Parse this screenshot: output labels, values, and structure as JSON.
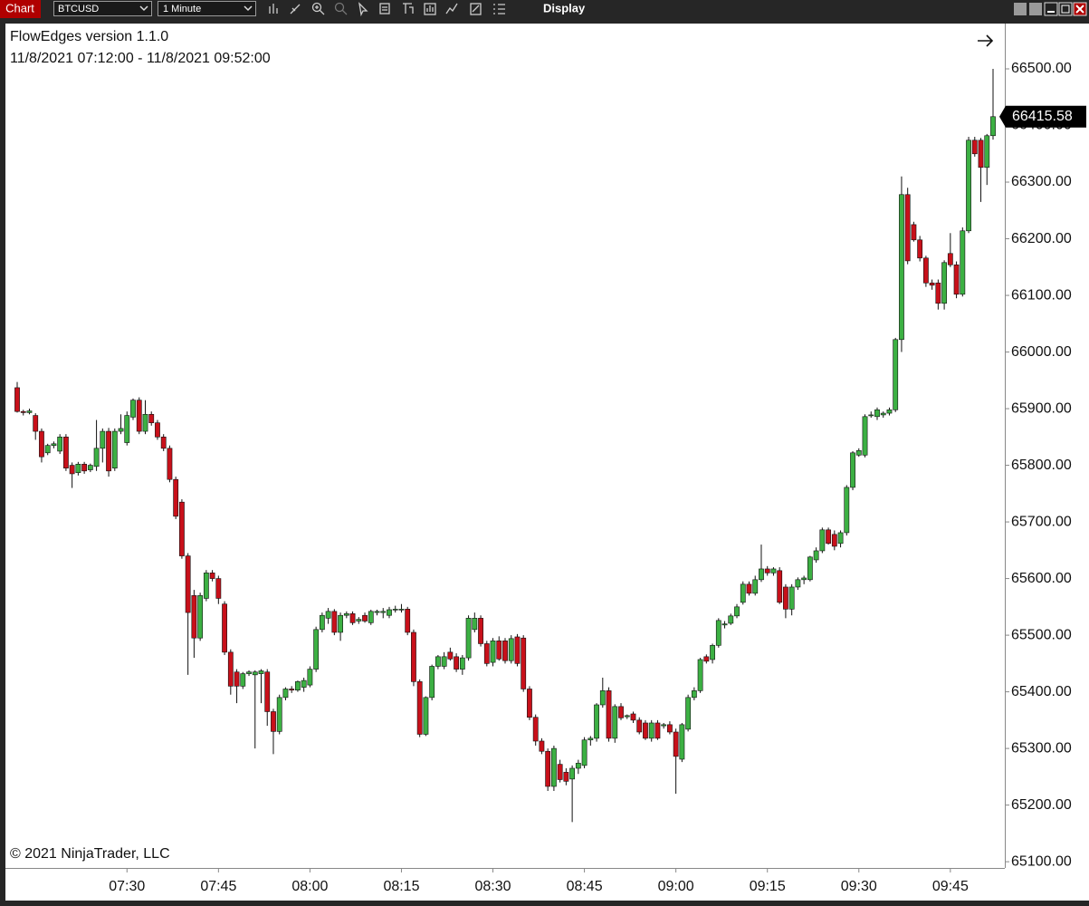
{
  "toolbar": {
    "tab": "Chart",
    "instrument": "BTCUSD",
    "interval": "1 Minute",
    "menu": "Display"
  },
  "chart_data": {
    "type": "candlestick",
    "title": "FlowEdges version 1.1.0",
    "subtitle": "11/8/2021 07:12:00 - 11/8/2021 09:52:00",
    "annotation": "© 2021 NinjaTrader, LLC",
    "up_color": "#3cb043",
    "down_color": "#c8101a",
    "categories": [
      null,
      null,
      null,
      null,
      null,
      null,
      null,
      null,
      null,
      null,
      null,
      null,
      null,
      null,
      null,
      null,
      null,
      null,
      "07:30",
      null,
      null,
      null,
      null,
      null,
      null,
      null,
      null,
      null,
      null,
      null,
      null,
      null,
      null,
      "07:45",
      null,
      null,
      null,
      null,
      null,
      null,
      null,
      null,
      null,
      null,
      null,
      null,
      null,
      null,
      "08:00",
      null,
      null,
      null,
      null,
      null,
      null,
      null,
      null,
      null,
      null,
      null,
      null,
      null,
      null,
      "08:15",
      null,
      null,
      null,
      null,
      null,
      null,
      null,
      null,
      null,
      null,
      null,
      null,
      null,
      null,
      "08:30",
      null,
      null,
      null,
      null,
      null,
      null,
      null,
      null,
      null,
      null,
      null,
      null,
      null,
      null,
      "08:45",
      null,
      null,
      null,
      null,
      null,
      null,
      null,
      null,
      null,
      null,
      null,
      null,
      null,
      null,
      "09:00",
      null,
      null,
      null,
      null,
      null,
      null,
      null,
      null,
      null,
      null,
      null,
      null,
      null,
      null,
      "09:15",
      null,
      null,
      null,
      null,
      null,
      null,
      null,
      null,
      null,
      null,
      null,
      null,
      null,
      null,
      "09:30",
      null,
      null,
      null,
      null,
      null,
      null,
      null,
      null,
      null,
      null,
      null,
      null,
      null,
      null,
      "09:45",
      null,
      null,
      null,
      null,
      null,
      null,
      null
    ],
    "open": [
      65937,
      65895,
      65893,
      65888,
      65860,
      65822,
      65835,
      65825,
      65850,
      65800,
      65787,
      65802,
      65792,
      65798,
      65830,
      65860,
      65795,
      65860,
      65840,
      65885,
      65915,
      65860,
      65890,
      65875,
      65850,
      65830,
      65775,
      65735,
      65640,
      65570,
      65495,
      65565,
      65610,
      65600,
      65555,
      65470,
      65435,
      65410,
      65432,
      65430,
      65432,
      65435,
      65365,
      65330,
      65390,
      65405,
      65403,
      65408,
      65412,
      65440,
      65510,
      65530,
      65542,
      65505,
      65535,
      65538,
      65525,
      65535,
      65522,
      65540,
      65540,
      65535,
      65545,
      65546,
      65546,
      65505,
      65418,
      65325,
      65390,
      65445,
      65445,
      65470,
      65462,
      65440,
      65460,
      65510,
      65530,
      65485,
      65452,
      65490,
      65490,
      65455,
      65497,
      65495,
      65405,
      65355,
      65313,
      65295,
      65233,
      65272,
      65258,
      65246,
      65265,
      65270,
      65315,
      65318,
      65377,
      65402,
      65318,
      65374,
      65356,
      65361,
      65350,
      65345,
      65318,
      65345,
      65340,
      65342,
      65329,
      65281,
      65334,
      65390,
      65402,
      65462,
      65457,
      65482,
      65518,
      65521,
      65534,
      65558,
      65590,
      65574,
      65598,
      65617,
      65610,
      65614,
      65585,
      65546,
      65585,
      65598,
      65598,
      65633,
      65649,
      65686,
      65678,
      65662,
      65681,
      65761,
      65818,
      65818,
      65888,
      65886,
      65889,
      65892,
      65898,
      66022,
      66278,
      66225,
      66198,
      66166,
      66122,
      66122,
      66086,
      66174,
      66154,
      66102,
      66214,
      66374,
      66374,
      66326,
      66382
    ],
    "high": [
      65947,
      65898,
      65900,
      65892,
      65865,
      65838,
      65842,
      65855,
      65855,
      65805,
      65806,
      65806,
      65803,
      65880,
      65865,
      65866,
      65865,
      65890,
      65895,
      65918,
      65920,
      65915,
      65895,
      65880,
      65855,
      65835,
      65780,
      65740,
      65645,
      65580,
      65575,
      65615,
      65615,
      65605,
      65560,
      65475,
      65440,
      65435,
      65438,
      65438,
      65440,
      65440,
      65370,
      65395,
      65408,
      65410,
      65420,
      65425,
      65445,
      65515,
      65540,
      65548,
      65546,
      65540,
      65542,
      65542,
      65532,
      65540,
      65545,
      65545,
      65548,
      65550,
      65552,
      65555,
      65550,
      65510,
      65422,
      65392,
      65448,
      65465,
      65470,
      65478,
      65468,
      65465,
      65535,
      65540,
      65535,
      65490,
      65495,
      65498,
      65495,
      65500,
      65502,
      65500,
      65410,
      65360,
      65318,
      65300,
      65305,
      65280,
      65265,
      65270,
      65280,
      65320,
      65322,
      65380,
      65425,
      65408,
      65378,
      65380,
      65360,
      65365,
      65355,
      65350,
      65350,
      65350,
      65345,
      65348,
      65335,
      65345,
      65395,
      65408,
      65460,
      65466,
      65485,
      65530,
      65525,
      65538,
      65555,
      65595,
      65595,
      65605,
      65660,
      65622,
      65620,
      65620,
      65590,
      65590,
      65602,
      65605,
      65640,
      65655,
      65690,
      65690,
      65685,
      65685,
      65765,
      65825,
      65830,
      65890,
      65895,
      65902,
      65895,
      65902,
      66025,
      66310,
      66290,
      66230,
      66205,
      66170,
      66128,
      66128,
      66162,
      66210,
      66160,
      66220,
      66380,
      66380,
      66378,
      66385,
      66500
    ],
    "low": [
      65893,
      65888,
      65890,
      65845,
      65805,
      65818,
      65830,
      65820,
      65790,
      65760,
      65782,
      65785,
      65788,
      65790,
      65805,
      65780,
      65790,
      65855,
      65835,
      65880,
      65855,
      65855,
      65870,
      65845,
      65825,
      65770,
      65705,
      65635,
      65430,
      65460,
      65490,
      65560,
      65595,
      65555,
      65465,
      65395,
      65380,
      65405,
      65428,
      65300,
      65380,
      65340,
      65290,
      65325,
      65385,
      65398,
      65400,
      65400,
      65408,
      65435,
      65505,
      65520,
      65500,
      65490,
      65530,
      65518,
      65520,
      65522,
      65518,
      65535,
      65530,
      65530,
      65540,
      65540,
      65500,
      65410,
      65320,
      65322,
      65385,
      65440,
      65440,
      65455,
      65435,
      65430,
      65455,
      65505,
      65480,
      65445,
      65445,
      65455,
      65450,
      65450,
      65445,
      65400,
      65350,
      65305,
      65290,
      65225,
      65225,
      65240,
      65235,
      65170,
      65255,
      65265,
      65305,
      65312,
      65372,
      65312,
      65310,
      65350,
      65352,
      65345,
      65325,
      65315,
      65312,
      65315,
      65335,
      65325,
      65220,
      65276,
      65330,
      65385,
      65398,
      65450,
      65450,
      65478,
      65512,
      65518,
      65530,
      65554,
      65570,
      65570,
      65594,
      65605,
      65605,
      65555,
      65530,
      65535,
      65580,
      65590,
      65595,
      65628,
      65645,
      65660,
      65650,
      65655,
      65676,
      65756,
      65815,
      65814,
      65884,
      65880,
      65884,
      65888,
      65894,
      66000,
      66155,
      66195,
      66160,
      66115,
      66110,
      66075,
      66075,
      66150,
      66095,
      66098,
      66210,
      66345,
      66265,
      66295,
      66375
    ],
    "close": [
      65895,
      65893,
      65896,
      65860,
      65815,
      65835,
      65838,
      65850,
      65795,
      65785,
      65802,
      65790,
      65800,
      65830,
      65860,
      65790,
      65860,
      65865,
      65888,
      65915,
      65860,
      65890,
      65875,
      65850,
      65830,
      65775,
      65710,
      65640,
      65540,
      65495,
      65570,
      65610,
      65600,
      65565,
      65470,
      65410,
      65410,
      65432,
      65435,
      65435,
      65437,
      65365,
      65330,
      65390,
      65405,
      65403,
      65418,
      65420,
      65440,
      65510,
      65535,
      65542,
      65505,
      65535,
      65538,
      65522,
      65528,
      65525,
      65542,
      65542,
      65542,
      65545,
      65546,
      65546,
      65505,
      65418,
      65325,
      65390,
      65445,
      65462,
      65462,
      65458,
      65440,
      65460,
      65530,
      65530,
      65485,
      65450,
      65490,
      65458,
      65455,
      65494,
      65450,
      65405,
      65355,
      65313,
      65295,
      65233,
      65300,
      65245,
      65242,
      65265,
      65274,
      65315,
      65318,
      65377,
      65402,
      65318,
      65374,
      65354,
      65358,
      65350,
      65329,
      65318,
      65345,
      65318,
      65342,
      65329,
      65286,
      65342,
      65390,
      65402,
      65457,
      65454,
      65482,
      65526,
      65520,
      65534,
      65550,
      65590,
      65574,
      65598,
      65617,
      65610,
      65617,
      65558,
      65546,
      65585,
      65598,
      65601,
      65638,
      65649,
      65686,
      65662,
      65657,
      65681,
      65761,
      65822,
      65826,
      65886,
      65889,
      65898,
      65892,
      65898,
      66022,
      66278,
      66161,
      66198,
      66166,
      66122,
      66118,
      66086,
      66158,
      66154,
      66102,
      66214,
      66374,
      66350,
      66326,
      66382,
      66415.58
    ],
    "ylim": [
      65089,
      66580
    ],
    "yticks": [
      {
        "value": 65100,
        "label": "65100.00"
      },
      {
        "value": 65200,
        "label": "65200.00"
      },
      {
        "value": 65300,
        "label": "65300.00"
      },
      {
        "value": 65400,
        "label": "65400.00"
      },
      {
        "value": 65500,
        "label": "65500.00"
      },
      {
        "value": 65600,
        "label": "65600.00"
      },
      {
        "value": 65700,
        "label": "65700.00"
      },
      {
        "value": 65800,
        "label": "65800.00"
      },
      {
        "value": 65900,
        "label": "65900.00"
      },
      {
        "value": 66000,
        "label": "66000.00"
      },
      {
        "value": 66100,
        "label": "66100.00"
      },
      {
        "value": 66200,
        "label": "66200.00"
      },
      {
        "value": 66300,
        "label": "66300.00"
      },
      {
        "value": 66400,
        "label": "66400.00"
      },
      {
        "value": 66500,
        "label": "66500.00"
      }
    ]
  }
}
